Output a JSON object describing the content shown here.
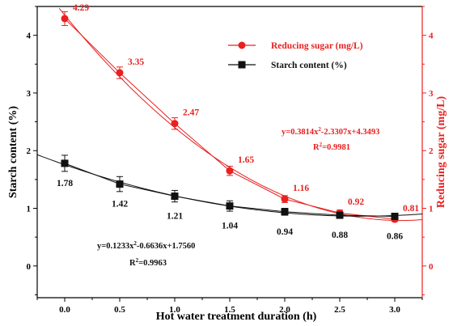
{
  "chart_data": {
    "type": "line",
    "xlabel": "Hot water treatment duration (h)",
    "ylabel_left": "Starch content (%)",
    "ylabel_right": "Reducing sugar (mg/L)",
    "x": [
      0.0,
      0.5,
      1.0,
      1.5,
      2.0,
      2.5,
      3.0
    ],
    "x_tick_labels": [
      "0.0",
      "0.5",
      "1.0",
      "1.5",
      "2.0",
      "2.5",
      "3.0"
    ],
    "xlim": [
      -0.25,
      3.25
    ],
    "y_left_ticks": [
      "0",
      "1",
      "2",
      "3",
      "4"
    ],
    "y_right_ticks": [
      "0",
      "1",
      "2",
      "3",
      "4"
    ],
    "ylim": [
      -0.55,
      4.5
    ],
    "grid": false,
    "legend_position": "top-right",
    "colors": {
      "reducing_sugar": "#e8201f",
      "starch": "#111111"
    },
    "series": [
      {
        "name": "Reducing sugar (mg/L)",
        "axis": "right",
        "marker": "circle",
        "values": [
          4.29,
          3.35,
          2.47,
          1.65,
          1.16,
          0.92,
          0.81
        ],
        "labels": [
          "4.29",
          "3.35",
          "2.47",
          "1.65",
          "1.16",
          "0.92",
          "0.81"
        ],
        "error": [
          0.12,
          0.1,
          0.1,
          0.08,
          0.06,
          0.05,
          0.04
        ]
      },
      {
        "name": "Starch content (%)",
        "axis": "left",
        "marker": "square",
        "values": [
          1.78,
          1.42,
          1.21,
          1.04,
          0.94,
          0.88,
          0.86
        ],
        "labels": [
          "1.78",
          "1.42",
          "1.21",
          "1.04",
          "0.94",
          "0.88",
          "0.86"
        ],
        "error": [
          0.14,
          0.13,
          0.1,
          0.09,
          0.06,
          0.05,
          0.04
        ]
      }
    ],
    "fits": [
      {
        "series": "Reducing sugar (mg/L)",
        "a": 0.3814,
        "b": -2.3307,
        "c": 4.3493,
        "equation_prefix": "y=0.3814x",
        "equation_suffix": "-2.3307x+4.3493",
        "r2_value": "=0.9981"
      },
      {
        "series": "Starch content (%)",
        "a": 0.1233,
        "b": -0.6636,
        "c": 1.756,
        "equation_prefix": "y=0.1233x",
        "equation_suffix": "-0.6636x+1.7560",
        "r2_value": "=0.9963"
      }
    ]
  }
}
